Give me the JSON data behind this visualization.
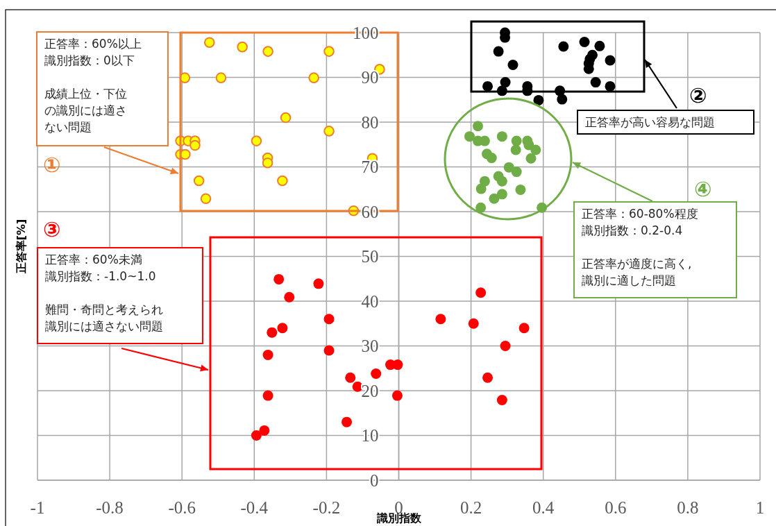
{
  "chart_data": {
    "type": "scatter",
    "xlabel": "識別指数",
    "ylabel": "正答率[%]",
    "xlim": [
      -1,
      1
    ],
    "ylim": [
      0,
      100
    ],
    "xticks": [
      -1,
      -0.8,
      -0.6,
      -0.4,
      -0.2,
      0,
      0.2,
      0.4,
      0.6,
      0.8,
      1
    ],
    "yticks": [
      0,
      10,
      20,
      30,
      40,
      50,
      60,
      70,
      80,
      90,
      100
    ],
    "grid": true,
    "marker": "circle",
    "series": [
      {
        "color": "#ffff00",
        "x": [
          -0.524,
          -0.433,
          -0.362,
          -0.193,
          -0.053,
          -0.592,
          -0.492,
          -0.235,
          -0.313,
          -0.193,
          -0.604,
          -0.583,
          -0.564,
          -0.564,
          -0.394,
          -0.604,
          -0.591,
          -0.363,
          -0.363,
          -0.073,
          -0.553,
          -0.322,
          -0.534,
          -0.125
        ],
        "values": [
          97.8,
          96.8,
          95.8,
          95.8,
          91.8,
          89.9,
          89.9,
          89.9,
          81.0,
          78.0,
          75.8,
          75.8,
          75.8,
          74.8,
          75.8,
          72.8,
          72.8,
          72.0,
          70.9,
          71.9,
          66.9,
          66.9,
          62.9,
          60.2
        ]
      },
      {
        "color": "#000000",
        "x": [
          0.294,
          0.294,
          0.276,
          0.316,
          0.456,
          0.514,
          0.556,
          0.536,
          0.529,
          0.526,
          0.526,
          0.585,
          0.246,
          0.295,
          0.286,
          0.356,
          0.356,
          0.387,
          0.446,
          0.452,
          0.545,
          0.585
        ],
        "values": [
          100,
          98.9,
          95.8,
          92.8,
          96.9,
          97.9,
          97.0,
          95.0,
          94.1,
          93.1,
          91.9,
          93.8,
          88.0,
          88.9,
          87.0,
          88.0,
          87.0,
          84.9,
          87.0,
          85.1,
          88.9,
          88.0
        ]
      },
      {
        "color": "#70ad47",
        "x": [
          0.219,
          0.196,
          0.219,
          0.238,
          0.286,
          0.326,
          0.356,
          0.379,
          0.324,
          0.36,
          0.366,
          0.244,
          0.257,
          0.305,
          0.326,
          0.276,
          0.286,
          0.238,
          0.228,
          0.337,
          0.264,
          0.286,
          0.227,
          0.396
        ],
        "values": [
          79.1,
          76.8,
          75.8,
          75.8,
          76.8,
          75.8,
          75.8,
          73.8,
          73.8,
          74.9,
          71.9,
          72.9,
          72.0,
          69.9,
          68.9,
          67.9,
          66.8,
          66.8,
          65.1,
          64.9,
          62.9,
          63.9,
          60.9,
          60.9
        ]
      },
      {
        "color": "#ff0000",
        "x": [
          -0.332,
          -0.222,
          -0.303,
          -0.193,
          -0.351,
          -0.322,
          -0.362,
          -0.193,
          -0.362,
          -0.394,
          -0.372,
          -0.134,
          -0.114,
          -0.144,
          -0.063,
          -0.023,
          -0.003,
          -0.004,
          0.227,
          0.116,
          0.207,
          0.347,
          0.295,
          0.246,
          0.286
        ],
        "values": [
          44.9,
          43.9,
          40.9,
          36.0,
          33.0,
          34.0,
          28.0,
          29.0,
          18.9,
          10.0,
          11.1,
          22.9,
          20.9,
          13.0,
          23.8,
          25.8,
          25.8,
          18.9,
          41.9,
          36.0,
          35.0,
          34.0,
          30.0,
          22.9,
          17.9
        ]
      }
    ],
    "annotations": [
      "正答率：60%以上",
      "識別指数：0以下",
      "成績上位・下位の識別には適さない問題",
      "①",
      "②",
      "正答率が高い容易な問題",
      "③",
      "正答率：60%未満",
      "識別指数：-1.0~1.0",
      "難問・奇問と考えられ識別には適さない問題",
      "④",
      "正答率：60-80%程度",
      "識別指数：0.2-0.4",
      "正答率が適度に高く,識別に適した問題"
    ]
  }
}
